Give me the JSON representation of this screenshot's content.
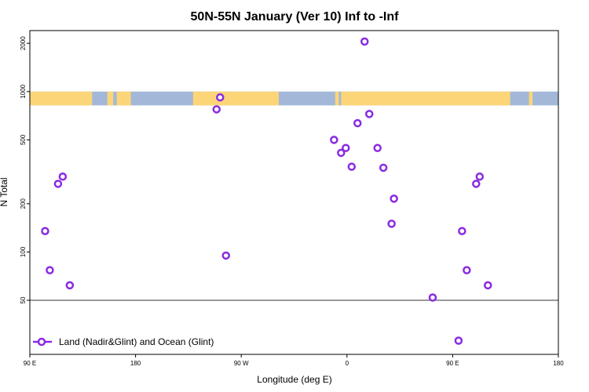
{
  "chart_data": {
    "type": "scatter",
    "title": "50N-55N January (Ver 10)   Inf to -Inf",
    "xlabel": "Longitude (deg E)",
    "ylabel": "N Total",
    "x_scale": "linear",
    "y_scale": "log",
    "xlim": [
      90,
      540
    ],
    "ylim": [
      23,
      2400
    ],
    "x_ticks": [
      {
        "value": 90,
        "label": "90 E"
      },
      {
        "value": 180,
        "label": "180"
      },
      {
        "value": 270,
        "label": "90 W"
      },
      {
        "value": 360,
        "label": "0"
      },
      {
        "value": 450,
        "label": "90 E"
      },
      {
        "value": 540,
        "label": "180"
      }
    ],
    "y_ticks": [
      {
        "value": 50,
        "label": "50"
      },
      {
        "value": 100,
        "label": "100"
      },
      {
        "value": 200,
        "label": "200"
      },
      {
        "value": 500,
        "label": "500"
      },
      {
        "value": 1000,
        "label": "1000"
      },
      {
        "value": 2000,
        "label": "2000"
      }
    ],
    "reference_line": {
      "y": 50
    },
    "land_ocean_band": {
      "y_range": [
        820,
        1000
      ],
      "land_color": "#fcd578",
      "ocean_color": "#a3b8d8",
      "land_segments": [
        [
          90,
          143
        ],
        [
          156,
          161
        ],
        [
          164,
          176
        ],
        [
          229,
          302
        ],
        [
          350,
          353
        ],
        [
          355,
          499
        ],
        [
          515,
          518
        ]
      ]
    },
    "legend": {
      "position": "bottom-left",
      "label": "Land (Nadir&Glint) and Ocean (Glint)"
    },
    "series": [
      {
        "name": "Land (Nadir&Glint) and Ocean (Glint)",
        "color": "#8a2be2",
        "points": [
          {
            "x": 103,
            "y": 135
          },
          {
            "x": 107,
            "y": 77
          },
          {
            "x": 114,
            "y": 266
          },
          {
            "x": 118,
            "y": 295
          },
          {
            "x": 124,
            "y": 62
          },
          {
            "x": 249,
            "y": 775
          },
          {
            "x": 252,
            "y": 920
          },
          {
            "x": 257,
            "y": 95
          },
          {
            "x": 349,
            "y": 500
          },
          {
            "x": 355,
            "y": 415
          },
          {
            "x": 359,
            "y": 445
          },
          {
            "x": 364,
            "y": 340
          },
          {
            "x": 369,
            "y": 635
          },
          {
            "x": 375,
            "y": 2050
          },
          {
            "x": 379,
            "y": 725
          },
          {
            "x": 386,
            "y": 445
          },
          {
            "x": 391,
            "y": 335
          },
          {
            "x": 398,
            "y": 150
          },
          {
            "x": 400,
            "y": 215
          },
          {
            "x": 433,
            "y": 52
          },
          {
            "x": 455,
            "y": 28
          },
          {
            "x": 458,
            "y": 135
          },
          {
            "x": 462,
            "y": 77
          },
          {
            "x": 470,
            "y": 266
          },
          {
            "x": 473,
            "y": 295
          },
          {
            "x": 480,
            "y": 62
          }
        ]
      }
    ]
  }
}
